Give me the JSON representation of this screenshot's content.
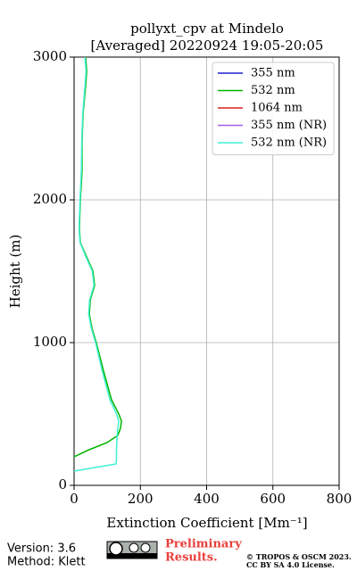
{
  "chart_data": {
    "type": "line",
    "title": [
      "pollyxt_cpv at Mindelo",
      "[Averaged] 20220924 19:05-20:05"
    ],
    "xlabel": "Extinction Coefficient [Mm⁻¹]",
    "ylabel": "Height (m)",
    "y": [
      100,
      150,
      200,
      250,
      300,
      350,
      400,
      450,
      500,
      600,
      800,
      1000,
      1100,
      1200,
      1300,
      1400,
      1500,
      1600,
      1700,
      1800,
      2000,
      2200,
      2400,
      2600,
      2800,
      2900,
      3000
    ],
    "series": [
      {
        "name": "355 nm",
        "color": "#1f1fcf",
        "values": [
          null,
          null,
          null,
          null,
          null,
          null,
          null,
          null,
          null,
          null,
          null,
          null,
          null,
          null,
          null,
          null,
          null,
          null,
          null,
          null,
          null,
          null,
          null,
          null,
          null,
          null,
          null
        ]
      },
      {
        "name": "532 nm",
        "color": "#00b400",
        "values": [
          null,
          null,
          0,
          46,
          100,
          132,
          140,
          143,
          135,
          113,
          89,
          67,
          54,
          46,
          49,
          62,
          57,
          38,
          19,
          16,
          19,
          24,
          24,
          27,
          35,
          38,
          35
        ]
      },
      {
        "name": "1064 nm",
        "color": "#d81e1e",
        "values": [
          null,
          null,
          null,
          null,
          null,
          null,
          null,
          null,
          null,
          null,
          null,
          null,
          null,
          null,
          null,
          null,
          null,
          null,
          null,
          null,
          null,
          null,
          null,
          null,
          null,
          null,
          null
        ]
      },
      {
        "name": "355 nm (NR)",
        "color": "#a45ee5",
        "values": [
          null,
          null,
          null,
          null,
          null,
          null,
          null,
          null,
          null,
          null,
          null,
          null,
          null,
          null,
          null,
          null,
          null,
          null,
          null,
          null,
          null,
          null,
          null,
          null,
          null,
          null,
          null
        ]
      },
      {
        "name": "532 nm (NR)",
        "color": "#3ff0d2",
        "values": [
          0,
          127,
          128,
          128,
          129,
          130,
          132,
          135,
          128,
          108,
          85,
          65,
          52,
          44,
          47,
          60,
          55,
          36,
          18,
          15,
          18,
          22,
          23,
          26,
          33,
          36,
          33
        ]
      }
    ],
    "xlim": [
      0,
      800
    ],
    "xticks": [
      0,
      200,
      400,
      600,
      800
    ],
    "ylim": [
      0,
      3000
    ],
    "yticks": [
      0,
      1000,
      2000,
      3000
    ],
    "grid": true,
    "legend": "upper right"
  },
  "footer": {
    "version": "Version: 3.6",
    "method": "Method: Klett",
    "preliminary": [
      "Preliminary",
      "Results."
    ],
    "copyright": [
      "© TROPOS & OSCM 2023.",
      "CC BY SA 4.0 License."
    ]
  }
}
